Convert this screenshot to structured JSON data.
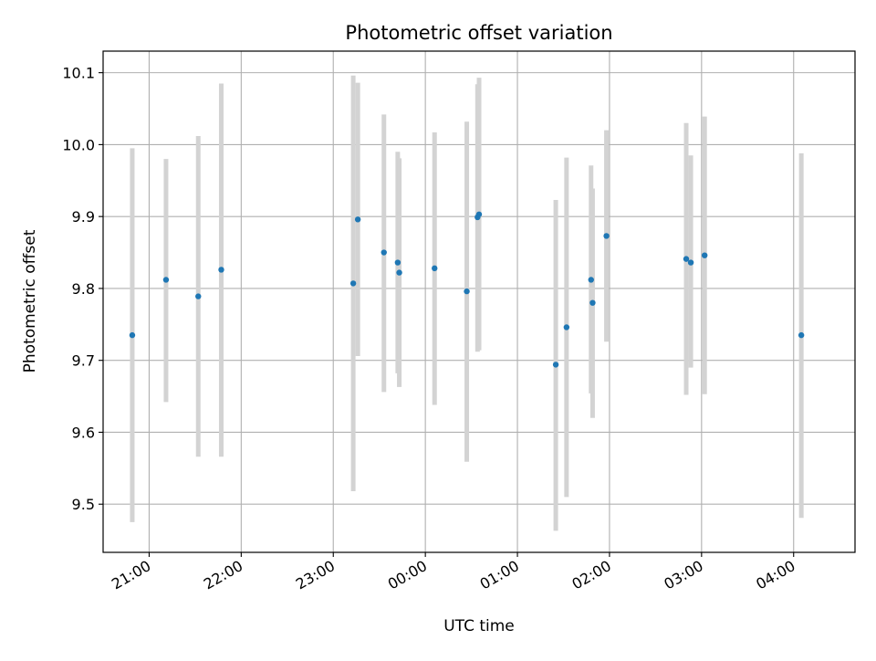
{
  "chart_data": {
    "type": "scatter",
    "title": "Photometric offset variation",
    "xlabel": "UTC time",
    "ylabel": "Photometric offset",
    "x_ticks": [
      "21:00",
      "22:00",
      "23:00",
      "00:00",
      "01:00",
      "02:00",
      "03:00",
      "04:00"
    ],
    "y_ticks": [
      "9.5",
      "9.6",
      "9.7",
      "9.8",
      "9.9",
      "10.0",
      "10.1"
    ],
    "ylim": [
      9.433,
      10.13
    ],
    "grid": true,
    "colors": {
      "marker": "#1f77b4",
      "error_bar": "#d3d3d3",
      "grid": "#b0b0b0",
      "axes": "#000000"
    },
    "series": [
      {
        "points": [
          {
            "x": "20:49",
            "y": 9.735,
            "low": 9.475,
            "high": 9.995
          },
          {
            "x": "21:11",
            "y": 9.812,
            "low": 9.642,
            "high": 9.98
          },
          {
            "x": "21:32",
            "y": 9.789,
            "low": 9.566,
            "high": 10.012
          },
          {
            "x": "21:47",
            "y": 9.826,
            "low": 9.566,
            "high": 10.085
          },
          {
            "x": "23:13",
            "y": 9.807,
            "low": 9.518,
            "high": 10.096
          },
          {
            "x": "23:16",
            "y": 9.896,
            "low": 9.706,
            "high": 10.086
          },
          {
            "x": "23:33",
            "y": 9.85,
            "low": 9.656,
            "high": 10.042
          },
          {
            "x": "23:42",
            "y": 9.836,
            "low": 9.682,
            "high": 9.99
          },
          {
            "x": "23:43",
            "y": 9.822,
            "low": 9.663,
            "high": 9.981
          },
          {
            "x": "00:06",
            "y": 9.828,
            "low": 9.638,
            "high": 10.017
          },
          {
            "x": "00:27",
            "y": 9.796,
            "low": 9.559,
            "high": 10.032
          },
          {
            "x": "00:34",
            "y": 9.899,
            "low": 9.712,
            "high": 10.084
          },
          {
            "x": "00:35",
            "y": 9.903,
            "low": 9.714,
            "high": 10.093
          },
          {
            "x": "01:25",
            "y": 9.694,
            "low": 9.463,
            "high": 9.923
          },
          {
            "x": "01:32",
            "y": 9.746,
            "low": 9.51,
            "high": 9.982
          },
          {
            "x": "01:48",
            "y": 9.812,
            "low": 9.654,
            "high": 9.971
          },
          {
            "x": "01:49",
            "y": 9.78,
            "low": 9.62,
            "high": 9.939
          },
          {
            "x": "01:58",
            "y": 9.873,
            "low": 9.726,
            "high": 10.02
          },
          {
            "x": "02:50",
            "y": 9.841,
            "low": 9.652,
            "high": 10.03
          },
          {
            "x": "02:53",
            "y": 9.836,
            "low": 9.69,
            "high": 9.985
          },
          {
            "x": "03:02",
            "y": 9.846,
            "low": 9.653,
            "high": 10.039
          },
          {
            "x": "04:05",
            "y": 9.735,
            "low": 9.481,
            "high": 9.988
          }
        ]
      }
    ]
  }
}
